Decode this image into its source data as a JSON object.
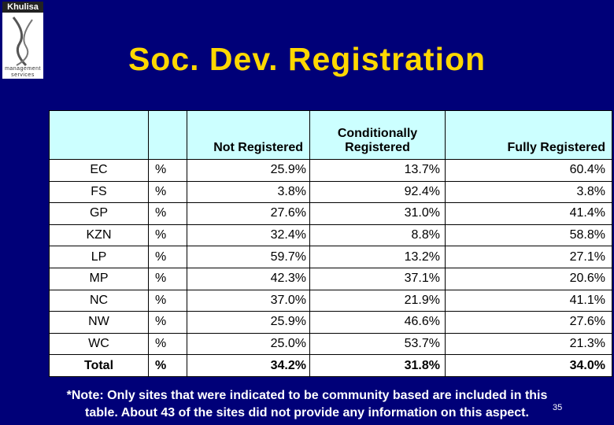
{
  "logo": {
    "name": "Khulisa",
    "tagline": [
      "management",
      "services"
    ]
  },
  "header": {
    "title": "Soc. Dev. Registration"
  },
  "table": {
    "columns": [
      "",
      "",
      "Not Registered",
      "Conditionally Registered",
      "Fully Registered"
    ],
    "rows": [
      [
        "EC",
        "%",
        "25.9%",
        "13.7%",
        "60.4%"
      ],
      [
        "FS",
        "%",
        "3.8%",
        "92.4%",
        "3.8%"
      ],
      [
        "GP",
        "%",
        "27.6%",
        "31.0%",
        "41.4%"
      ],
      [
        "KZN",
        "%",
        "32.4%",
        "8.8%",
        "58.8%"
      ],
      [
        "LP",
        "%",
        "59.7%",
        "13.2%",
        "27.1%"
      ],
      [
        "MP",
        "%",
        "42.3%",
        "37.1%",
        "20.6%"
      ],
      [
        "NC",
        "%",
        "37.0%",
        "21.9%",
        "41.1%"
      ],
      [
        "NW",
        "%",
        "25.9%",
        "46.6%",
        "27.6%"
      ],
      [
        "WC",
        "%",
        "25.0%",
        "53.7%",
        "21.3%"
      ],
      [
        "Total",
        "%",
        "34.2%",
        "31.8%",
        "34.0%"
      ]
    ]
  },
  "note": [
    "*Note: Only sites that were indicated to be community based are included in this",
    "table.  About 43 of the sites did not provide any information on this aspect."
  ],
  "page_number": "35"
}
